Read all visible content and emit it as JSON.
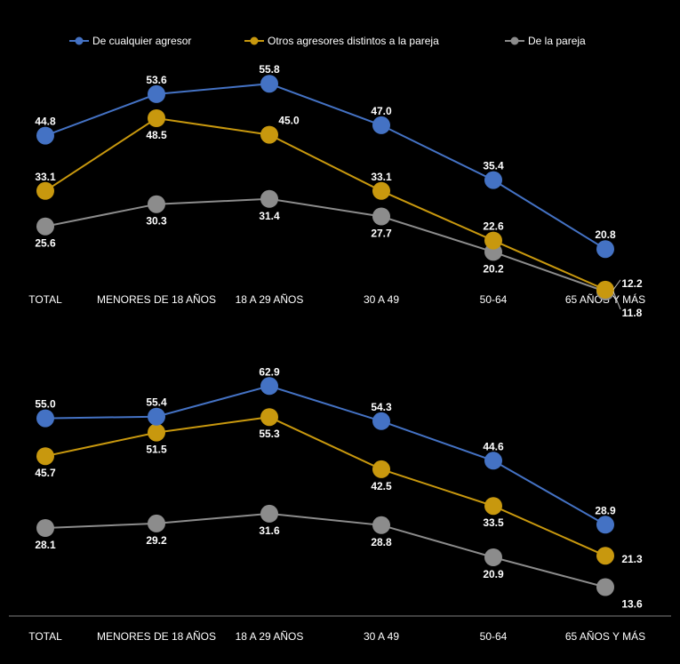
{
  "legend": [
    {
      "label": "De cualquier agresor",
      "color": "#4472C4"
    },
    {
      "label": "Otros agresores distintos a la pareja",
      "color": "#C8980E"
    },
    {
      "label": "De la pareja",
      "color": "#8C8C8C"
    }
  ],
  "chart_data": [
    {
      "type": "line",
      "categories": [
        "TOTAL",
        "MENORES DE 18 AÑOS",
        "18 A 29 AÑOS",
        "30 A 49",
        "50-64",
        "65 AÑOS Y MÁS"
      ],
      "series": [
        {
          "name": "De cualquier agresor",
          "color": "#4472C4",
          "values": [
            44.8,
            53.6,
            55.8,
            47.0,
            35.4,
            20.8
          ],
          "labels": [
            "44.8",
            "53.6",
            "55.8",
            "47.0",
            "35.4",
            "20.8"
          ]
        },
        {
          "name": "Otros agresores distintos a la pareja",
          "color": "#C8980E",
          "values": [
            33.1,
            48.5,
            45.0,
            33.1,
            22.6,
            12.2
          ],
          "labels": [
            "33.1",
            "48.5",
            "45.0",
            "33.1",
            "22.6",
            "12.2"
          ]
        },
        {
          "name": "De la pareja",
          "color": "#8C8C8C",
          "values": [
            25.6,
            30.3,
            31.4,
            27.7,
            20.2,
            11.8
          ],
          "labels": [
            "25.6",
            "30.3",
            "31.4",
            "27.7",
            "20.2",
            "11.8"
          ]
        }
      ],
      "legend_position": "top"
    },
    {
      "type": "line",
      "categories": [
        "TOTAL",
        "MENORES DE 18 AÑOS",
        "18 A 29 AÑOS",
        "30 A 49",
        "50-64",
        "65 AÑOS Y MÁS"
      ],
      "series": [
        {
          "name": "De cualquier agresor",
          "color": "#4472C4",
          "values": [
            55.0,
            55.4,
            62.9,
            54.3,
            44.6,
            28.9
          ],
          "labels": [
            "55.0",
            "55.4",
            "62.9",
            "54.3",
            "44.6",
            "28.9"
          ]
        },
        {
          "name": "Otros agresores distintos a la pareja",
          "color": "#C8980E",
          "values": [
            45.7,
            51.5,
            55.3,
            42.5,
            33.5,
            21.3
          ],
          "labels": [
            "45.7",
            "51.5",
            "55.3",
            "42.5",
            "33.5",
            "21.3"
          ]
        },
        {
          "name": "De la pareja",
          "color": "#8C8C8C",
          "values": [
            28.1,
            29.2,
            31.6,
            28.8,
            20.9,
            13.6
          ],
          "labels": [
            "28.1",
            "29.2",
            "31.6",
            "28.8",
            "20.9",
            "13.6"
          ]
        }
      ]
    }
  ]
}
